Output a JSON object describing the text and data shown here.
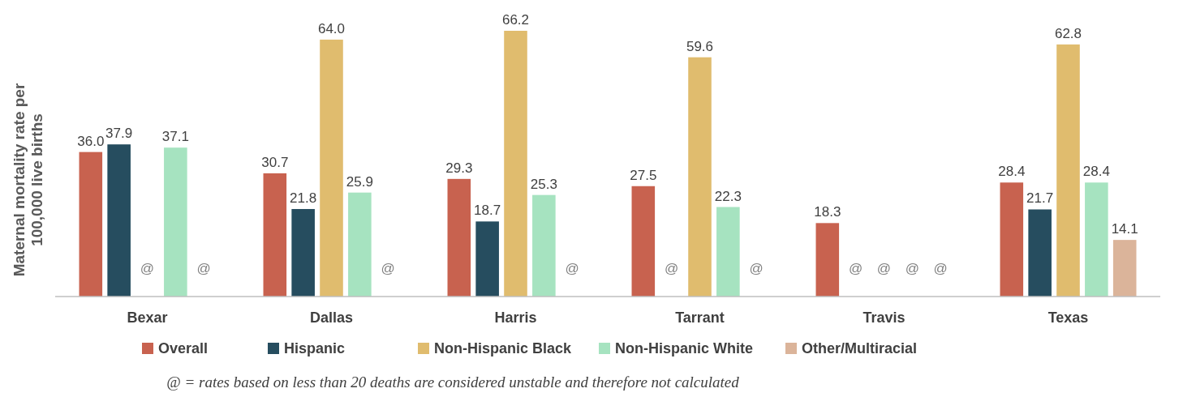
{
  "chart_data": {
    "type": "bar",
    "ylabel": "Maternal mortality rate per 100,000 live births",
    "categories": [
      "Bexar",
      "Dallas",
      "Harris",
      "Tarrant",
      "Travis",
      "Texas"
    ],
    "series": [
      {
        "name": "Overall",
        "color": "#c8624f",
        "values": [
          36.0,
          30.7,
          29.3,
          27.5,
          18.3,
          28.4
        ],
        "value_labels": [
          "36.0",
          "30.7",
          "29.3",
          "27.5",
          "18.3",
          "28.4"
        ]
      },
      {
        "name": "Hispanic",
        "color": "#264d5f",
        "values": [
          37.9,
          21.8,
          18.7,
          null,
          null,
          21.7
        ],
        "value_labels": [
          "37.9",
          "21.8",
          "18.7",
          "@",
          "@",
          "21.7"
        ]
      },
      {
        "name": "Non-Hispanic Black",
        "color": "#e0bc6e",
        "values": [
          null,
          64.0,
          66.2,
          59.6,
          null,
          62.8
        ],
        "value_labels": [
          "@",
          "64.0",
          "66.2",
          "59.6",
          "@",
          "62.8"
        ]
      },
      {
        "name": "Non-Hispanic White",
        "color": "#a6e3c0",
        "values": [
          37.1,
          25.9,
          25.3,
          22.3,
          null,
          28.4
        ],
        "value_labels": [
          "37.1",
          "25.9",
          "25.3",
          "22.3",
          "@",
          "28.4"
        ]
      },
      {
        "name": "Other/Multiracial",
        "color": "#dbb49a",
        "values": [
          null,
          null,
          null,
          null,
          null,
          14.1
        ],
        "value_labels": [
          "@",
          "@",
          "@",
          "@",
          "@",
          "14.1"
        ]
      }
    ],
    "legend": "bottom",
    "annotations": [
      "@ = rates based on less than 20 deaths are considered unstable and therefore not calculated"
    ]
  }
}
